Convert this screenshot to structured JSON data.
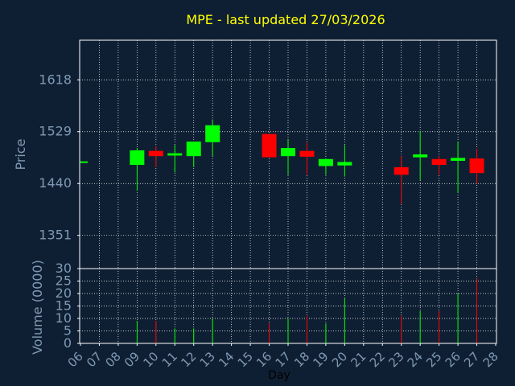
{
  "chart_data": {
    "type": "candlestick",
    "title": "MPE - last updated 27/03/2026",
    "xlabel": "Day",
    "colors": {
      "background": "#0f1f33",
      "grid": "#ffffff",
      "axis": "#ffffff",
      "up": "#00ff00",
      "down": "#ff0000",
      "title": "#ffff00",
      "labels": "#7f99b3"
    },
    "grid": true,
    "days": [
      "06",
      "07",
      "08",
      "09",
      "10",
      "11",
      "12",
      "13",
      "14",
      "15",
      "16",
      "17",
      "18",
      "19",
      "20",
      "21",
      "22",
      "23",
      "24",
      "25",
      "26",
      "27",
      "28"
    ],
    "price": {
      "ylabel": "Price",
      "ylim": [
        1294,
        1686
      ],
      "ticks": [
        1351,
        1440,
        1529,
        1618
      ],
      "candles": [
        {
          "day": "06",
          "open": 1476,
          "close": 1478,
          "high": 1478,
          "low": 1476
        },
        {
          "day": "09",
          "open": 1472,
          "close": 1497,
          "high": 1501,
          "low": 1428
        },
        {
          "day": "10",
          "open": 1496,
          "close": 1487,
          "high": 1504,
          "low": 1468
        },
        {
          "day": "11",
          "open": 1488,
          "close": 1492,
          "high": 1506,
          "low": 1459
        },
        {
          "day": "12",
          "open": 1487,
          "close": 1512,
          "high": 1512,
          "low": 1468
        },
        {
          "day": "13",
          "open": 1511,
          "close": 1540,
          "high": 1550,
          "low": 1487
        },
        {
          "day": "16",
          "open": 1525,
          "close": 1485,
          "high": 1525,
          "low": 1485
        },
        {
          "day": "17",
          "open": 1487,
          "close": 1501,
          "high": 1515,
          "low": 1455
        },
        {
          "day": "18",
          "open": 1496,
          "close": 1486,
          "high": 1510,
          "low": 1455
        },
        {
          "day": "19",
          "open": 1470,
          "close": 1482,
          "high": 1483,
          "low": 1455
        },
        {
          "day": "20",
          "open": 1471,
          "close": 1477,
          "high": 1506,
          "low": 1452
        },
        {
          "day": "23",
          "open": 1468,
          "close": 1455,
          "high": 1487,
          "low": 1405
        },
        {
          "day": "24",
          "open": 1485,
          "close": 1490,
          "high": 1530,
          "low": 1446
        },
        {
          "day": "25",
          "open": 1482,
          "close": 1472,
          "high": 1487,
          "low": 1455
        },
        {
          "day": "26",
          "open": 1479,
          "close": 1484,
          "high": 1511,
          "low": 1424
        },
        {
          "day": "27",
          "open": 1483,
          "close": 1458,
          "high": 1500,
          "low": 1439
        }
      ]
    },
    "volume": {
      "ylabel": "Volume (0000)",
      "ylim": [
        0,
        30
      ],
      "ticks": [
        0,
        5,
        10,
        15,
        20,
        25,
        30
      ],
      "bars": [
        {
          "day": "09",
          "value": 9,
          "direction": "up"
        },
        {
          "day": "10",
          "value": 9,
          "direction": "down"
        },
        {
          "day": "11",
          "value": 6,
          "direction": "up"
        },
        {
          "day": "12",
          "value": 6,
          "direction": "up"
        },
        {
          "day": "13",
          "value": 10,
          "direction": "up"
        },
        {
          "day": "16",
          "value": 8,
          "direction": "down"
        },
        {
          "day": "17",
          "value": 10,
          "direction": "up"
        },
        {
          "day": "18",
          "value": 11,
          "direction": "down"
        },
        {
          "day": "19",
          "value": 8,
          "direction": "up"
        },
        {
          "day": "20",
          "value": 18,
          "direction": "up"
        },
        {
          "day": "23",
          "value": 11,
          "direction": "down"
        },
        {
          "day": "24",
          "value": 13,
          "direction": "up"
        },
        {
          "day": "25",
          "value": 13,
          "direction": "down"
        },
        {
          "day": "26",
          "value": 20,
          "direction": "up"
        },
        {
          "day": "27",
          "value": 26,
          "direction": "down"
        }
      ]
    }
  }
}
